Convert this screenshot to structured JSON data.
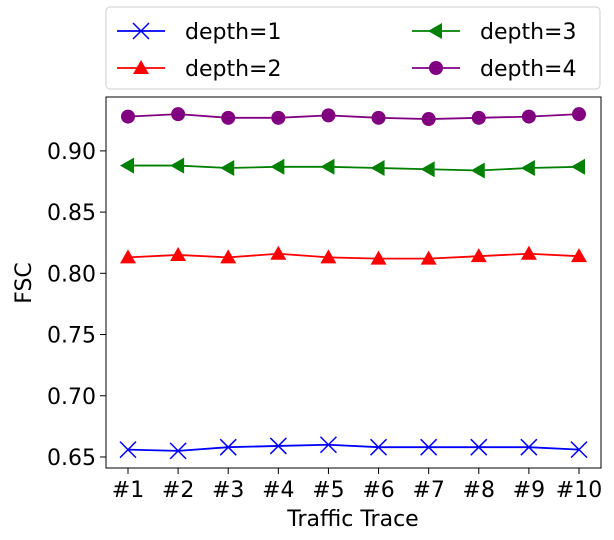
{
  "chart_data": {
    "type": "line",
    "xlabel": "Traffic Trace",
    "ylabel": "FSC",
    "categories": [
      "#1",
      "#2",
      "#3",
      "#4",
      "#5",
      "#6",
      "#7",
      "#8",
      "#9",
      "#10"
    ],
    "yticks": [
      "0.65",
      "0.70",
      "0.75",
      "0.80",
      "0.85",
      "0.90"
    ],
    "ylim": [
      0.641,
      0.944
    ],
    "grid": false,
    "legend_position": "top, above plot, two columns",
    "series": [
      {
        "name": "depth=1",
        "color": "#0000ff",
        "marker": "x",
        "values": [
          0.656,
          0.655,
          0.658,
          0.659,
          0.66,
          0.658,
          0.658,
          0.658,
          0.658,
          0.656
        ]
      },
      {
        "name": "depth=2",
        "color": "#ff0000",
        "marker": "triangle-up",
        "values": [
          0.813,
          0.815,
          0.813,
          0.816,
          0.813,
          0.812,
          0.812,
          0.814,
          0.816,
          0.814
        ]
      },
      {
        "name": "depth=3",
        "color": "#008000",
        "marker": "triangle-left",
        "values": [
          0.888,
          0.888,
          0.886,
          0.887,
          0.887,
          0.886,
          0.885,
          0.884,
          0.886,
          0.887
        ]
      },
      {
        "name": "depth=4",
        "color": "#800080",
        "marker": "circle",
        "values": [
          0.928,
          0.93,
          0.927,
          0.927,
          0.929,
          0.927,
          0.926,
          0.927,
          0.928,
          0.93
        ]
      }
    ]
  }
}
